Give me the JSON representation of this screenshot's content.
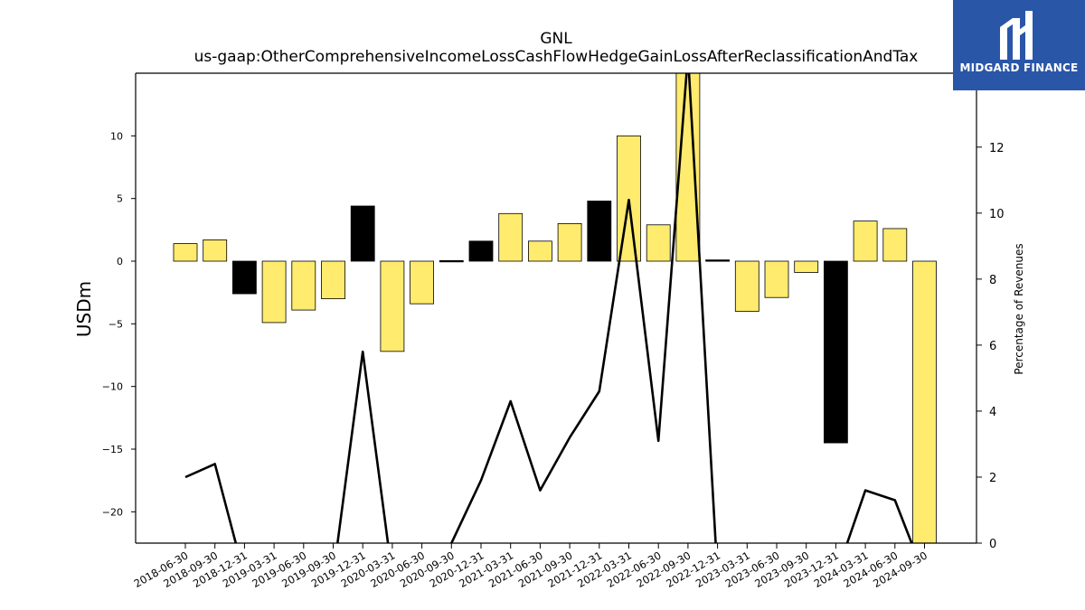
{
  "chart_data": {
    "type": "bar",
    "title": "GNL",
    "subtitle": "us-gaap:OtherComprehensiveIncomeLossCashFlowHedgeGainLossAfterReclassificationAndTax",
    "ylabel": "USDm",
    "y2label": "Percentage of Revenues",
    "ylim": [
      -22.5,
      15.0
    ],
    "y2lim": [
      0,
      14.24
    ],
    "yticks": [
      -20,
      -15,
      -10,
      -5,
      0,
      5,
      10
    ],
    "y2ticks": [
      0,
      2,
      4,
      6,
      8,
      10,
      12
    ],
    "categories": [
      "2018-06-30",
      "2018-09-30",
      "2018-12-31",
      "2019-03-31",
      "2019-06-30",
      "2019-09-30",
      "2019-12-31",
      "2020-03-31",
      "2020-06-30",
      "2020-09-30",
      "2020-12-31",
      "2021-03-31",
      "2021-06-30",
      "2021-09-30",
      "2021-12-31",
      "2022-03-31",
      "2022-06-30",
      "2022-09-30",
      "2022-12-31",
      "2023-03-31",
      "2023-06-30",
      "2023-09-30",
      "2023-12-31",
      "2024-03-31",
      "2024-06-30",
      "2024-09-30"
    ],
    "series": [
      {
        "type": "bar",
        "values": [
          1.4,
          1.7,
          -2.6,
          -4.9,
          -3.9,
          -3.0,
          4.4,
          -7.2,
          -3.4,
          0.05,
          1.6,
          3.8,
          1.6,
          3.0,
          4.8,
          10.0,
          2.9,
          15.0,
          0.1,
          -4.0,
          -2.9,
          -0.9,
          -14.5,
          3.2,
          2.6,
          -22.5
        ],
        "colors": [
          "#ffeb6e",
          "#ffeb6e",
          "#000000",
          "#ffeb6e",
          "#ffeb6e",
          "#ffeb6e",
          "#000000",
          "#ffeb6e",
          "#ffeb6e",
          "#000000",
          "#000000",
          "#ffeb6e",
          "#ffeb6e",
          "#ffeb6e",
          "#000000",
          "#ffeb6e",
          "#ffeb6e",
          "#ffeb6e",
          "#000000",
          "#ffeb6e",
          "#ffeb6e",
          "#ffeb6e",
          "#000000",
          "#ffeb6e",
          "#ffeb6e",
          "#ffeb6e"
        ]
      },
      {
        "type": "line",
        "axis": "right",
        "values": [
          2.0,
          2.4,
          -1,
          -1,
          -1,
          -1,
          5.8,
          -1,
          -1,
          0,
          1.9,
          4.3,
          1.6,
          3.2,
          4.6,
          10.4,
          3.1,
          14.8,
          -1,
          -1,
          -1,
          -1,
          -1,
          1.6,
          1.3,
          -1
        ]
      }
    ],
    "grid": false,
    "legend": "none"
  },
  "logo": {
    "text": "MIDGARD FINANCE",
    "color": "#2a56a8"
  }
}
